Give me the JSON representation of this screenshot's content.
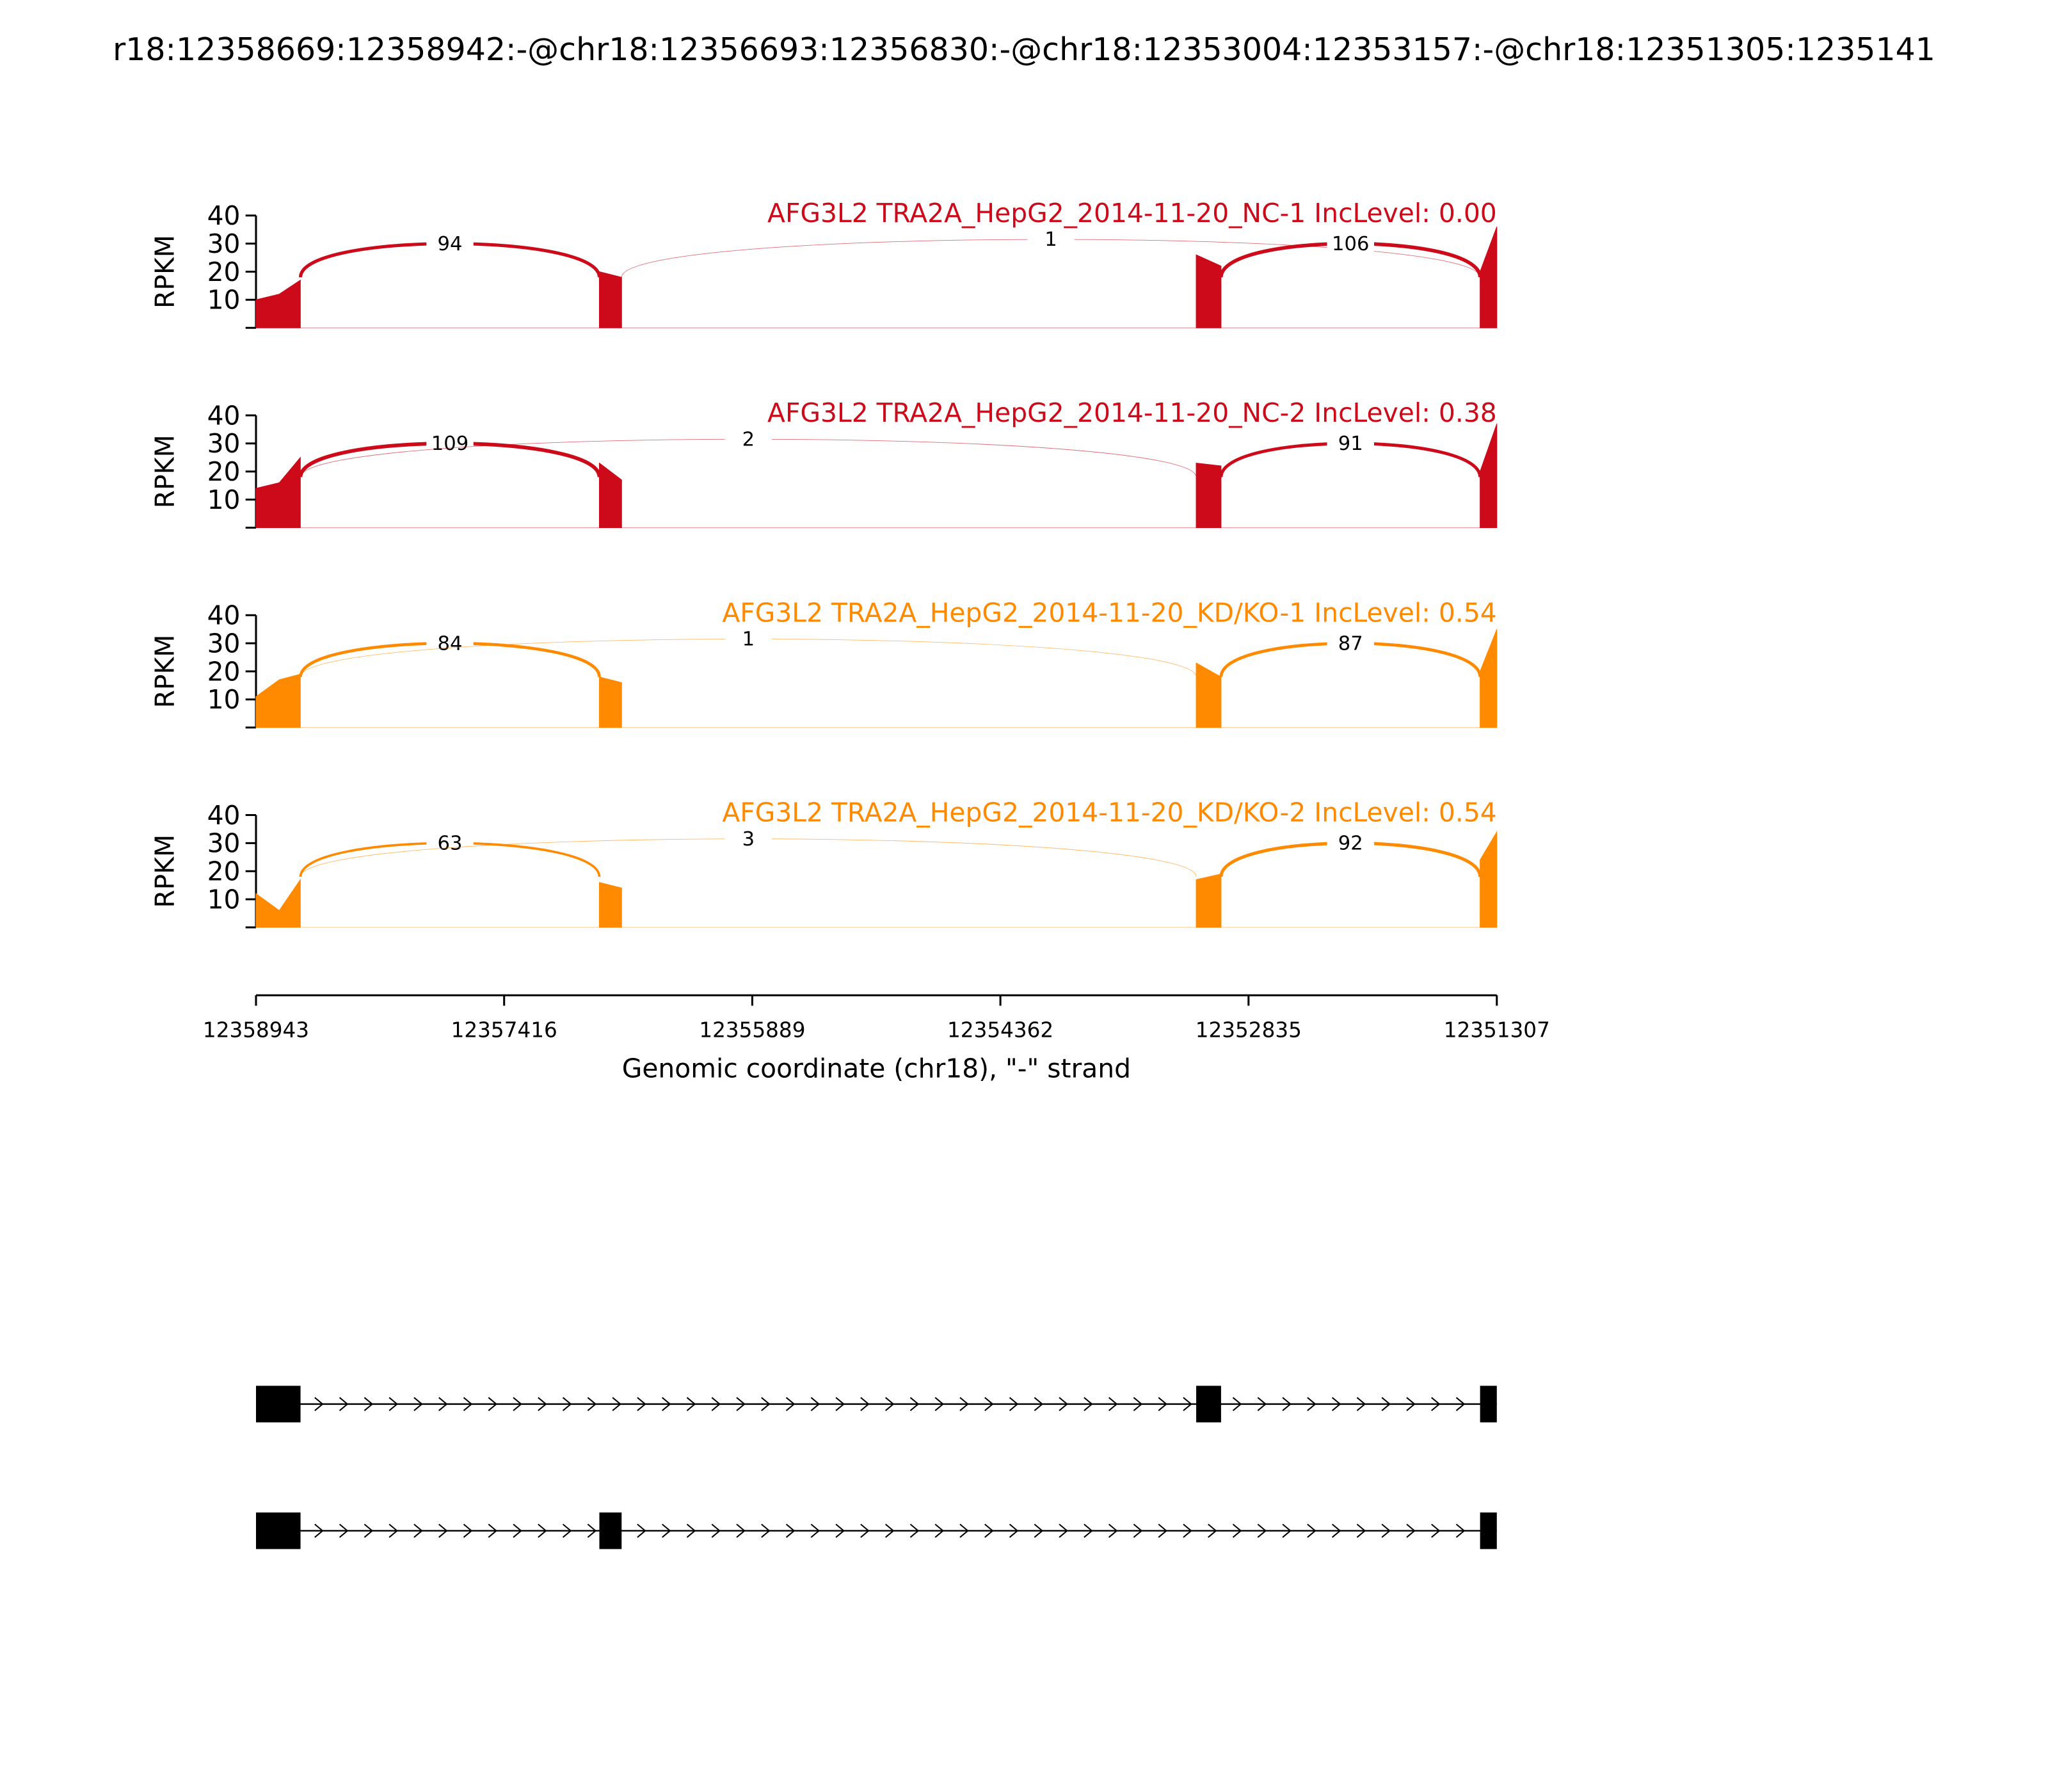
{
  "chart_data": {
    "type": "sashimi",
    "title": "r18:12358669:12358942:-@chr18:12356693:12356830:-@chr18:12353004:12353157:-@chr18:12351305:1235141",
    "x_label": "Genomic coordinate (chr18), \"-\" strand",
    "y_label": "RPKM",
    "xlim": [
      12358943,
      12351307
    ],
    "xticks": [
      12358943,
      12357416,
      12355889,
      12354362,
      12352835,
      12351307
    ],
    "ylim": [
      0,
      40
    ],
    "yticks": [
      10,
      20,
      30,
      40
    ],
    "panels": [
      {
        "title": "AFG3L2 TRA2A_HepG2_2014-11-20_NC-1 IncLevel: 0.00",
        "color": "#cc0a1a",
        "coverage": {
          "x": [
            12358943,
            12358800,
            12358670,
            null,
            12356830,
            12356693,
            null,
            12353157,
            12353004,
            null,
            12351410,
            12351307
          ],
          "values": [
            10,
            12,
            17,
            null,
            20,
            18,
            null,
            26,
            22,
            null,
            20,
            36
          ]
        },
        "junctions": [
          {
            "from": 12358669,
            "to": 12356830,
            "count": 94
          },
          {
            "from": 12356693,
            "to": 12351410,
            "count": 1
          },
          {
            "from": 12353004,
            "to": 12351410,
            "count": 106
          }
        ]
      },
      {
        "title": "AFG3L2 TRA2A_HepG2_2014-11-20_NC-2 IncLevel: 0.38",
        "color": "#cc0a1a",
        "coverage": {
          "x": [
            12358943,
            12358800,
            12358670,
            null,
            12356830,
            12356693,
            null,
            12353157,
            12353004,
            null,
            12351410,
            12351307
          ],
          "values": [
            14,
            16,
            25,
            null,
            23,
            17,
            null,
            23,
            22,
            null,
            20,
            37
          ]
        },
        "junctions": [
          {
            "from": 12358669,
            "to": 12356830,
            "count": 109
          },
          {
            "from": 12358669,
            "to": 12353157,
            "count": 2
          },
          {
            "from": 12353004,
            "to": 12351410,
            "count": 91
          }
        ]
      },
      {
        "title": "AFG3L2 TRA2A_HepG2_2014-11-20_KD/KO-1 IncLevel: 0.54",
        "color": "#ff8a00",
        "coverage": {
          "x": [
            12358943,
            12358800,
            12358670,
            null,
            12356830,
            12356693,
            null,
            12353157,
            12353004,
            null,
            12351410,
            12351307
          ],
          "values": [
            11,
            17,
            19,
            null,
            18,
            16,
            null,
            23,
            18,
            null,
            20,
            35
          ]
        },
        "junctions": [
          {
            "from": 12358669,
            "to": 12356830,
            "count": 84
          },
          {
            "from": 12358669,
            "to": 12353157,
            "count": 1
          },
          {
            "from": 12353004,
            "to": 12351410,
            "count": 87
          }
        ]
      },
      {
        "title": "AFG3L2 TRA2A_HepG2_2014-11-20_KD/KO-2 IncLevel: 0.54",
        "color": "#ff8a00",
        "coverage": {
          "x": [
            12358943,
            12358800,
            12358670,
            null,
            12356830,
            12356693,
            null,
            12353157,
            12353004,
            null,
            12351410,
            12351307
          ],
          "values": [
            12,
            6,
            17,
            null,
            16,
            14,
            null,
            17,
            19,
            null,
            24,
            34
          ]
        },
        "junctions": [
          {
            "from": 12358669,
            "to": 12356830,
            "count": 63
          },
          {
            "from": 12358669,
            "to": 12353157,
            "count": 3
          },
          {
            "from": 12353004,
            "to": 12351410,
            "count": 92
          }
        ]
      }
    ],
    "transcripts": [
      {
        "exons": [
          [
            12358943,
            12358669
          ],
          [
            12353157,
            12353004
          ],
          [
            12351410,
            12351307
          ]
        ]
      },
      {
        "exons": [
          [
            12358943,
            12358669
          ],
          [
            12356830,
            12356693
          ],
          [
            12351410,
            12351307
          ]
        ]
      }
    ]
  }
}
